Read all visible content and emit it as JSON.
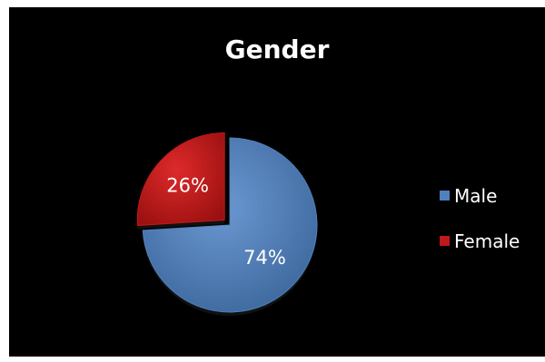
{
  "chart_data": {
    "type": "pie",
    "title": "Gender",
    "categories": [
      "Male",
      "Female"
    ],
    "values": [
      74,
      26
    ],
    "value_labels": [
      "74%",
      "26%"
    ],
    "colors": [
      "#4f81bd",
      "#c0181b"
    ],
    "exploded": [
      "",
      "Female"
    ],
    "legend_position": "right",
    "background": "#000000"
  }
}
